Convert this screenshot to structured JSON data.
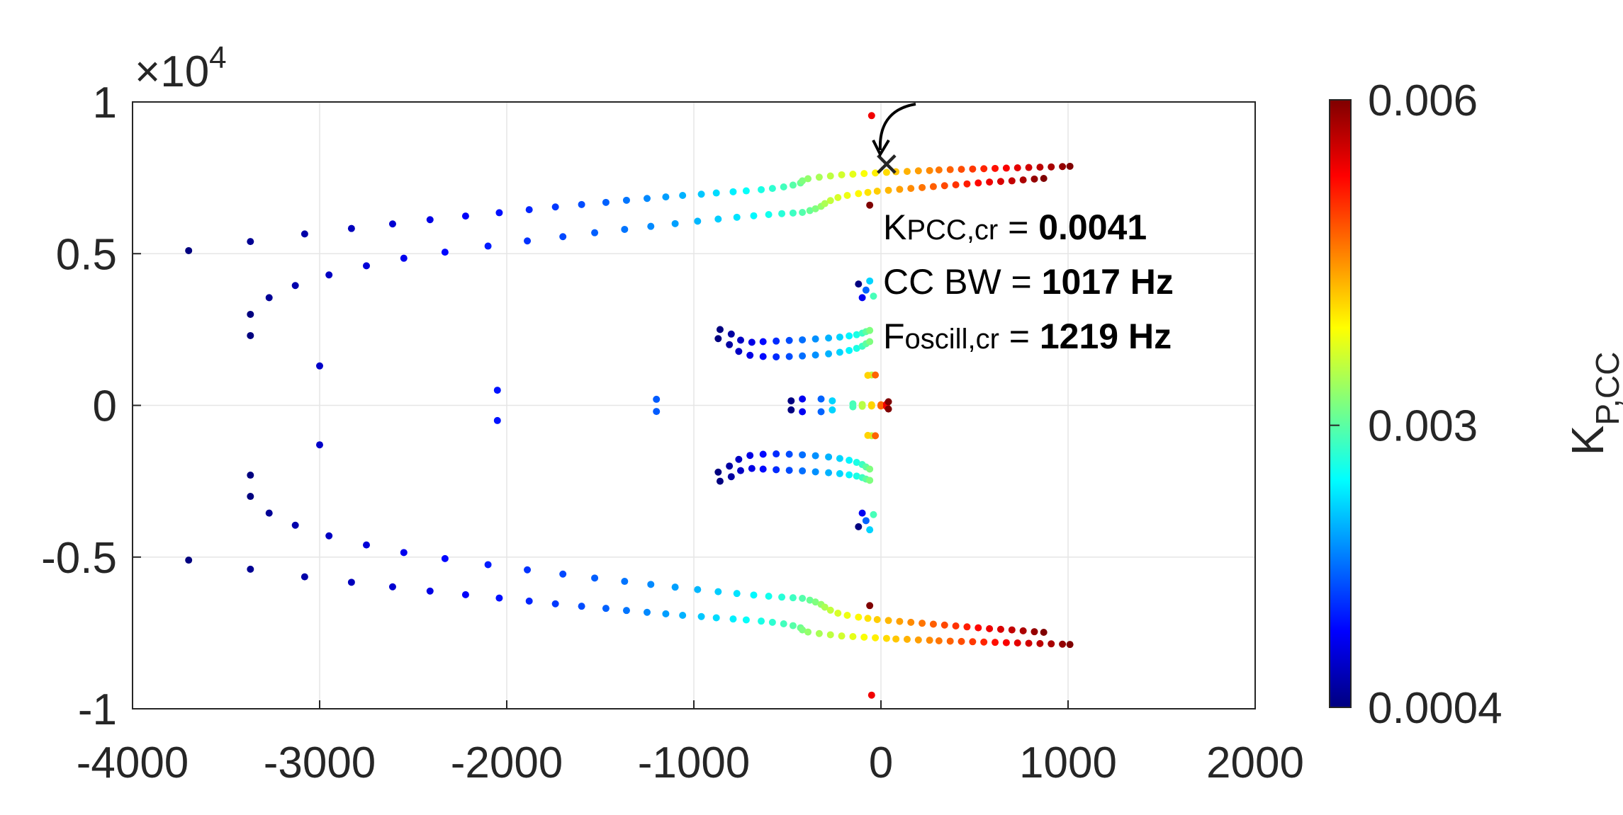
{
  "chart_data": {
    "type": "scatter",
    "title": "",
    "xlabel": "",
    "ylabel": "",
    "xlim": [
      -4000,
      2000
    ],
    "ylim": [
      -10000,
      10000
    ],
    "x_ticks": [
      -4000,
      -3000,
      -2000,
      -1000,
      0,
      1000,
      2000
    ],
    "x_tick_labels": [
      "-4000",
      "-3000",
      "-2000",
      "-1000",
      "0",
      "1000",
      "2000"
    ],
    "y_ticks": [
      -10000,
      -5000,
      0,
      5000,
      10000
    ],
    "y_tick_labels": [
      "-1",
      "-0.5",
      "0",
      "0.5",
      "1"
    ],
    "y_exponent_label": "×10",
    "y_exponent_power": "4",
    "grid": true,
    "colorbar": {
      "label_main": "K",
      "label_sub": "P,CC",
      "range": [
        0.0004,
        0.006
      ],
      "tick_labels": [
        "0.006",
        "0.003",
        "0.0004"
      ],
      "tick_values": [
        0.006,
        0.003,
        0.0004
      ],
      "colormap": [
        "#00007f",
        "#0000ff",
        "#007fff",
        "#00ffff",
        "#7fff7f",
        "#ffff00",
        "#ff7f00",
        "#ff0000",
        "#7f0000"
      ]
    },
    "marker_point": {
      "x": 30,
      "y": 7700,
      "symbol": "×"
    },
    "annotations": {
      "kp_main": "K",
      "kp_sub": "PCC,cr",
      "kp_eq": " = ",
      "kp_value": "0.0041",
      "bw_label": "CC BW = ",
      "bw_value": "1017 Hz",
      "fo_main": "F",
      "fo_sub": "oscill,cr",
      "fo_eq": " = ",
      "fo_value": "1219 Hz"
    },
    "series": [
      {
        "name": "outer-branch",
        "mirror": true,
        "k0": 0.0004,
        "k1": 0.006,
        "upper": [
          [
            -3700,
            5100
          ],
          [
            -3370,
            5400
          ],
          [
            -3080,
            5650
          ],
          [
            -2830,
            5830
          ],
          [
            -2610,
            5980
          ],
          [
            -2410,
            6120
          ],
          [
            -2220,
            6240
          ],
          [
            -2040,
            6350
          ],
          [
            -1880,
            6450
          ],
          [
            -1740,
            6540
          ],
          [
            -1600,
            6620
          ],
          [
            -1470,
            6690
          ],
          [
            -1360,
            6760
          ],
          [
            -1250,
            6820
          ],
          [
            -1150,
            6870
          ],
          [
            -1060,
            6920
          ],
          [
            -960,
            6960
          ],
          [
            -880,
            7000
          ],
          [
            -790,
            7040
          ],
          [
            -720,
            7070
          ],
          [
            -640,
            7110
          ],
          [
            -580,
            7150
          ],
          [
            -520,
            7200
          ],
          [
            -470,
            7260
          ],
          [
            -430,
            7330
          ],
          [
            -420,
            7400
          ],
          [
            -390,
            7470
          ],
          [
            -330,
            7520
          ],
          [
            -270,
            7560
          ],
          [
            -210,
            7600
          ],
          [
            -150,
            7620
          ],
          [
            -90,
            7640
          ],
          [
            -30,
            7660
          ],
          [
            30,
            7680
          ],
          [
            80,
            7700
          ],
          [
            140,
            7710
          ],
          [
            200,
            7730
          ],
          [
            260,
            7740
          ],
          [
            310,
            7760
          ],
          [
            370,
            7770
          ],
          [
            430,
            7780
          ],
          [
            490,
            7790
          ],
          [
            550,
            7800
          ],
          [
            610,
            7810
          ],
          [
            670,
            7820
          ],
          [
            730,
            7830
          ],
          [
            790,
            7840
          ],
          [
            850,
            7850
          ],
          [
            910,
            7860
          ],
          [
            970,
            7870
          ],
          [
            1010,
            7880
          ]
        ]
      },
      {
        "name": "inner-branch",
        "mirror": true,
        "k0": 0.0004,
        "k1": 0.006,
        "upper": [
          [
            -3370,
            3000
          ],
          [
            -3270,
            3550
          ],
          [
            -3130,
            3950
          ],
          [
            -2950,
            4300
          ],
          [
            -2750,
            4600
          ],
          [
            -2550,
            4850
          ],
          [
            -2330,
            5050
          ],
          [
            -2100,
            5250
          ],
          [
            -1890,
            5420
          ],
          [
            -1700,
            5560
          ],
          [
            -1530,
            5690
          ],
          [
            -1370,
            5800
          ],
          [
            -1230,
            5900
          ],
          [
            -1100,
            5990
          ],
          [
            -980,
            6070
          ],
          [
            -870,
            6140
          ],
          [
            -770,
            6200
          ],
          [
            -680,
            6250
          ],
          [
            -600,
            6290
          ],
          [
            -530,
            6320
          ],
          [
            -470,
            6340
          ],
          [
            -420,
            6360
          ],
          [
            -380,
            6420
          ],
          [
            -350,
            6480
          ],
          [
            -320,
            6560
          ],
          [
            -300,
            6650
          ],
          [
            -270,
            6750
          ],
          [
            -230,
            6850
          ],
          [
            -180,
            6920
          ],
          [
            -120,
            6980
          ],
          [
            -70,
            7020
          ],
          [
            -20,
            7060
          ],
          [
            40,
            7090
          ],
          [
            100,
            7120
          ],
          [
            160,
            7150
          ],
          [
            220,
            7180
          ],
          [
            280,
            7210
          ],
          [
            340,
            7240
          ],
          [
            400,
            7270
          ],
          [
            460,
            7300
          ],
          [
            520,
            7330
          ],
          [
            580,
            7360
          ],
          [
            640,
            7380
          ],
          [
            700,
            7400
          ],
          [
            760,
            7430
          ],
          [
            820,
            7460
          ],
          [
            870,
            7480
          ]
        ]
      },
      {
        "name": "mid-branch-a",
        "mirror": true,
        "k0": 0.0004,
        "k1": 0.0032,
        "upper": [
          [
            -860,
            2500
          ],
          [
            -800,
            2350
          ],
          [
            -750,
            2150
          ],
          [
            -690,
            2080
          ],
          [
            -630,
            2100
          ],
          [
            -560,
            2120
          ],
          [
            -490,
            2140
          ],
          [
            -420,
            2160
          ],
          [
            -350,
            2190
          ],
          [
            -280,
            2220
          ],
          [
            -220,
            2250
          ],
          [
            -170,
            2290
          ],
          [
            -130,
            2330
          ],
          [
            -100,
            2380
          ],
          [
            -80,
            2430
          ],
          [
            -60,
            2470
          ]
        ]
      },
      {
        "name": "mid-branch-b",
        "mirror": true,
        "k0": 0.0004,
        "k1": 0.0032,
        "upper": [
          [
            -870,
            2200
          ],
          [
            -810,
            2000
          ],
          [
            -760,
            1780
          ],
          [
            -700,
            1650
          ],
          [
            -630,
            1610
          ],
          [
            -560,
            1600
          ],
          [
            -490,
            1610
          ],
          [
            -420,
            1630
          ],
          [
            -350,
            1660
          ],
          [
            -280,
            1700
          ],
          [
            -220,
            1750
          ],
          [
            -170,
            1810
          ],
          [
            -130,
            1880
          ],
          [
            -100,
            1950
          ],
          [
            -80,
            2030
          ],
          [
            -60,
            2100
          ]
        ]
      },
      {
        "name": "far-points",
        "mirror": true,
        "k0": 0.0004,
        "k1": 0.0016,
        "upper": [
          [
            -3370,
            2300
          ],
          [
            -3000,
            1300
          ],
          [
            -2050,
            500
          ],
          [
            -1200,
            200
          ]
        ]
      },
      {
        "name": "near-axis",
        "mirror": true,
        "k0": 0.0004,
        "k1": 0.006,
        "upper": [
          [
            -480,
            150
          ],
          [
            -420,
            210
          ],
          [
            -320,
            210
          ],
          [
            -260,
            150
          ],
          [
            -150,
            50
          ],
          [
            -100,
            30
          ],
          [
            -50,
            20
          ],
          [
            0,
            20
          ],
          [
            30,
            40
          ],
          [
            40,
            120
          ]
        ]
      },
      {
        "name": "imag-axis-column",
        "mirror": true,
        "k0": 0.0004,
        "k1": 0.006,
        "upper": [
          [
            -120,
            4000
          ],
          [
            -100,
            3550
          ],
          [
            -80,
            3800
          ],
          [
            -60,
            4100
          ],
          [
            -40,
            3600
          ],
          [
            -50,
            1000
          ],
          [
            -70,
            990
          ],
          [
            -30,
            1000
          ],
          [
            -50,
            9550
          ],
          [
            -60,
            6600
          ]
        ]
      }
    ]
  }
}
